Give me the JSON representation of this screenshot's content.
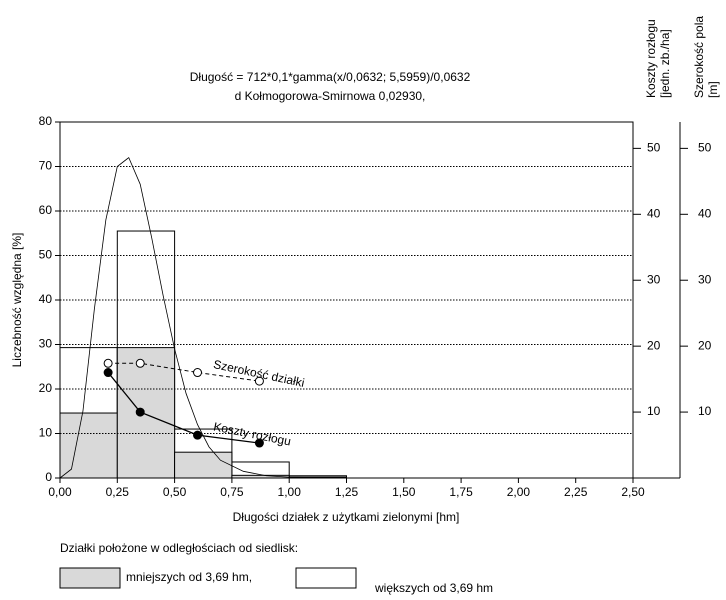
{
  "chart_data": {
    "type": "histogram",
    "title": "Długość = 712*0,1*gamma(x/0,0632; 5,5959)/0,0632",
    "subtitle": "d Kołmogorowa-Smirnowa 0,02930,",
    "xlabel": "Długości działek z użytkami zielonymi [hm]",
    "ylabel": "Liczebność względna [%]",
    "y2label": [
      "Koszty rozłogu",
      "[jedn. zb./ha]"
    ],
    "y3label": [
      "Szerokość  pola",
      "[m]"
    ],
    "legend_title": "Działki położone w odległościach od siedlisk:",
    "bins": [
      0,
      0.25,
      0.5,
      0.75,
      1.0,
      1.25
    ],
    "series": [
      {
        "name": "mniejszych od 3,69 hm,",
        "color": "#d9d9d9",
        "values": [
          14.6,
          29.3,
          5.8,
          0.6,
          0.2
        ]
      },
      {
        "name": "większych od 3,69 hm",
        "color": "#ffffff",
        "values": [
          29.3,
          55.5,
          11,
          3.6,
          0.5
        ]
      }
    ],
    "curve": {
      "x": [
        0,
        0.05,
        0.1,
        0.15,
        0.2,
        0.25,
        0.3,
        0.35,
        0.4,
        0.45,
        0.5,
        0.55,
        0.6,
        0.65,
        0.7,
        0.8,
        0.9,
        1.0,
        1.1,
        1.25
      ],
      "values": [
        0,
        2,
        15,
        38,
        58,
        70,
        72,
        66,
        54,
        41,
        29,
        19,
        12,
        7,
        4,
        1.5,
        0.5,
        0.2,
        0.1,
        0
      ]
    },
    "lines": [
      {
        "name": "Szerokość działki",
        "axis": "y3",
        "dashed": true,
        "x": [
          0.21,
          0.35,
          0.6,
          0.87
        ],
        "values": [
          17.4,
          17.4,
          16,
          14.7
        ]
      },
      {
        "name": "Koszty rozłogu",
        "axis": "y2",
        "dashed": false,
        "x": [
          0.21,
          0.35,
          0.6,
          0.87
        ],
        "values": [
          16,
          10,
          6.5,
          5.3
        ]
      }
    ],
    "xlim": [
      0,
      2.5
    ],
    "xticks": [
      {
        "value": 0,
        "label": "0,00"
      },
      {
        "value": 0.25,
        "label": "0,25"
      },
      {
        "value": 0.5,
        "label": "0,50"
      },
      {
        "value": 0.75,
        "label": "0,75"
      },
      {
        "value": 1,
        "label": "1,00"
      },
      {
        "value": 1.25,
        "label": "1,25"
      },
      {
        "value": 1.5,
        "label": "1,50"
      },
      {
        "value": 1.75,
        "label": "1,75"
      },
      {
        "value": 2,
        "label": "2,00"
      },
      {
        "value": 2.25,
        "label": "2,25"
      },
      {
        "value": 2.5,
        "label": "2,50"
      }
    ],
    "ylim": [
      0,
      80
    ],
    "yticks": [
      0,
      10,
      20,
      30,
      40,
      50,
      60,
      70,
      80
    ],
    "y2lim": [
      0,
      54
    ],
    "y2ticks": [
      10,
      20,
      30,
      40,
      50
    ],
    "y3lim": [
      0,
      54
    ],
    "y3ticks": [
      10,
      20,
      30,
      40,
      50
    ],
    "grid": true
  }
}
